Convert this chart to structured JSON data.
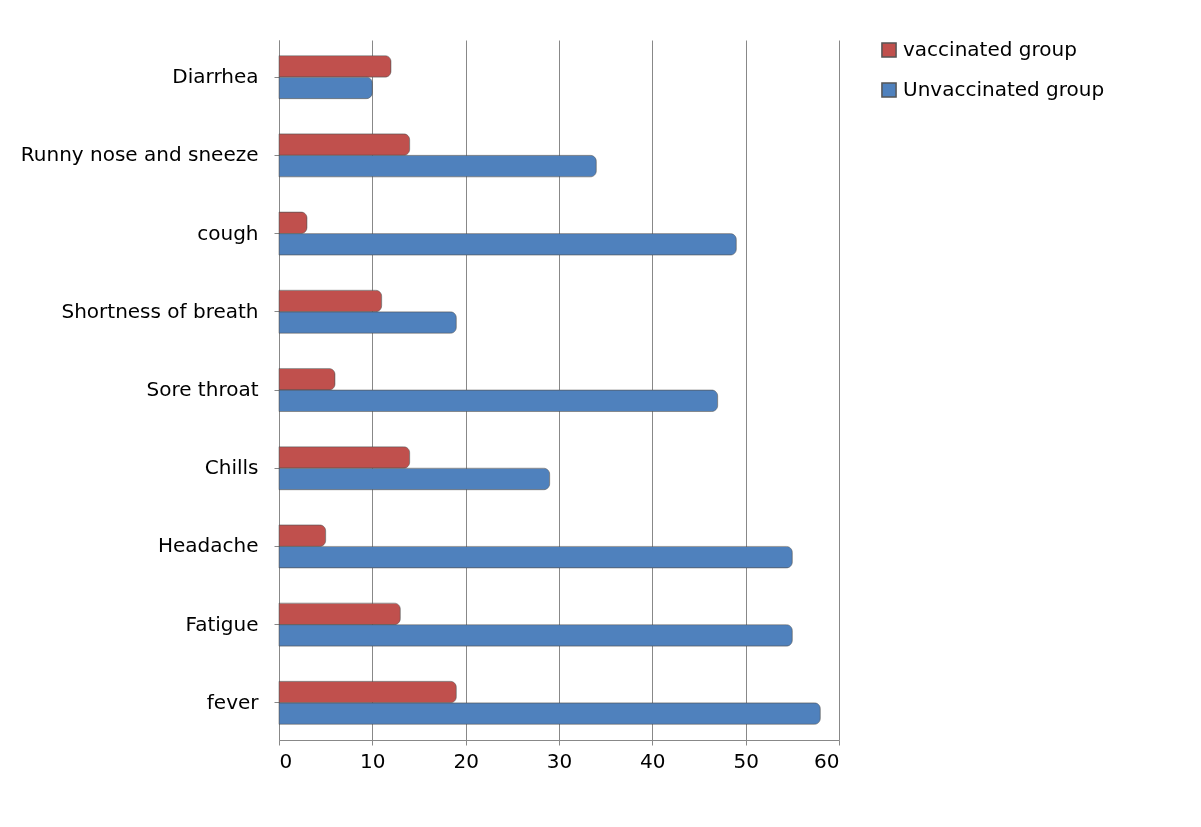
{
  "chart_data": {
    "type": "bar",
    "orientation": "horizontal",
    "categories": [
      "Diarrhea",
      "Runny nose and sneeze",
      "cough",
      "Shortness of breath",
      "Sore throat",
      "Chills",
      "Headache",
      "Fatigue",
      "fever"
    ],
    "series": [
      {
        "name": "vaccinated group",
        "color": "#c0504d",
        "values": [
          12,
          14,
          3,
          11,
          6,
          14,
          5,
          13,
          19
        ]
      },
      {
        "name": "Unvaccinated group",
        "color": "#4f81bd",
        "values": [
          10,
          34,
          49,
          19,
          47,
          29,
          55,
          55,
          58
        ]
      }
    ],
    "xlim": [
      0,
      60
    ],
    "xticks": [
      0,
      10,
      20,
      30,
      40,
      50,
      60
    ],
    "grid": "x",
    "legend": "right"
  }
}
